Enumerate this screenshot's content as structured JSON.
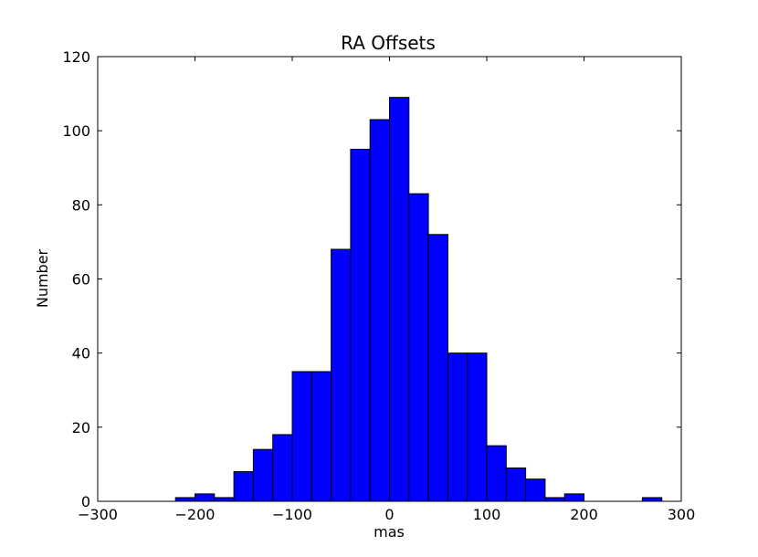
{
  "chart_data": {
    "type": "bar",
    "title": "RA Offsets",
    "xlabel": "mas",
    "ylabel": "Number",
    "xlim": [
      -300,
      300
    ],
    "ylim": [
      0,
      120
    ],
    "grid": false,
    "bar_color": "#0000ff",
    "edge_color": "#000000",
    "bin_width": 20,
    "bins": [
      {
        "x0": -220,
        "x1": -200,
        "count": 1
      },
      {
        "x0": -200,
        "x1": -180,
        "count": 2
      },
      {
        "x0": -180,
        "x1": -160,
        "count": 1
      },
      {
        "x0": -160,
        "x1": -140,
        "count": 8
      },
      {
        "x0": -140,
        "x1": -120,
        "count": 14
      },
      {
        "x0": -120,
        "x1": -100,
        "count": 18
      },
      {
        "x0": -100,
        "x1": -80,
        "count": 35
      },
      {
        "x0": -80,
        "x1": -60,
        "count": 35
      },
      {
        "x0": -60,
        "x1": -40,
        "count": 68
      },
      {
        "x0": -40,
        "x1": -20,
        "count": 95
      },
      {
        "x0": -20,
        "x1": 0,
        "count": 103
      },
      {
        "x0": 0,
        "x1": 20,
        "count": 109
      },
      {
        "x0": 20,
        "x1": 40,
        "count": 83
      },
      {
        "x0": 40,
        "x1": 60,
        "count": 72
      },
      {
        "x0": 60,
        "x1": 80,
        "count": 40
      },
      {
        "x0": 80,
        "x1": 100,
        "count": 40
      },
      {
        "x0": 100,
        "x1": 120,
        "count": 15
      },
      {
        "x0": 120,
        "x1": 140,
        "count": 9
      },
      {
        "x0": 140,
        "x1": 160,
        "count": 6
      },
      {
        "x0": 160,
        "x1": 180,
        "count": 1
      },
      {
        "x0": 180,
        "x1": 200,
        "count": 2
      },
      {
        "x0": 200,
        "x1": 220,
        "count": 0
      },
      {
        "x0": 220,
        "x1": 240,
        "count": 0
      },
      {
        "x0": 240,
        "x1": 260,
        "count": 0
      },
      {
        "x0": 260,
        "x1": 280,
        "count": 1
      }
    ],
    "x_ticks": [
      -300,
      -200,
      -100,
      0,
      100,
      200,
      300
    ],
    "x_tick_labels": [
      "−300",
      "−200",
      "−100",
      "0",
      "100",
      "200",
      "300"
    ],
    "y_ticks": [
      0,
      20,
      40,
      60,
      80,
      100,
      120
    ],
    "y_tick_labels": [
      "0",
      "20",
      "40",
      "60",
      "80",
      "100",
      "120"
    ]
  }
}
